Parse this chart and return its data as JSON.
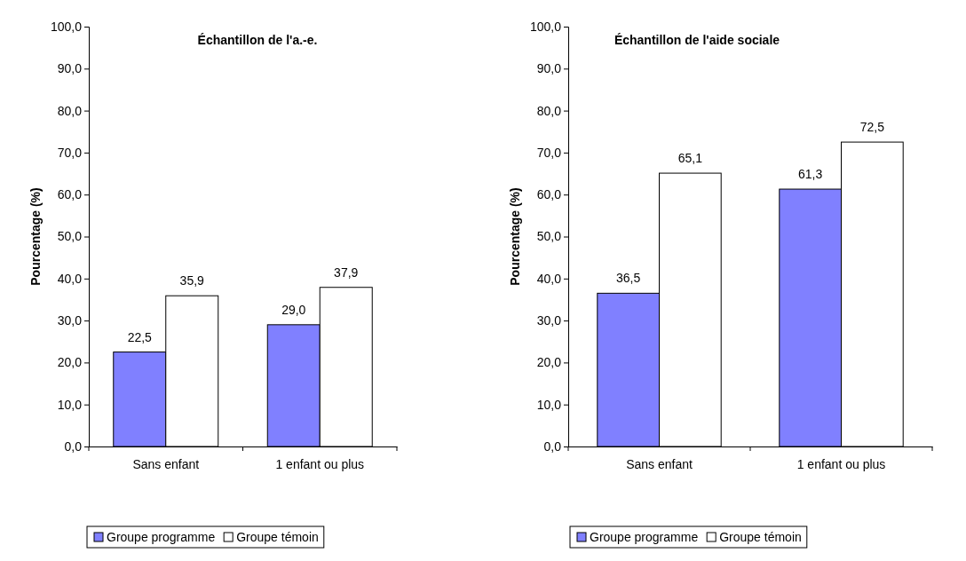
{
  "chart_data": [
    {
      "type": "bar",
      "title": "Échantillon de l'a.-e.",
      "ylabel": "Pourcentage (%)",
      "categories": [
        "Sans enfant",
        "1 enfant ou plus"
      ],
      "series": [
        {
          "name": "Groupe programme",
          "color": "#8080ff",
          "values": [
            22.5,
            29.0
          ],
          "value_labels": [
            "22,5",
            "29,0"
          ]
        },
        {
          "name": "Groupe témoin",
          "color": "#ffffff",
          "values": [
            35.9,
            37.9
          ],
          "value_labels": [
            "35,9",
            "37,9"
          ]
        }
      ],
      "ylim": [
        0,
        100
      ],
      "yticks": [
        {
          "value": 0,
          "label": "0,0"
        },
        {
          "value": 10,
          "label": "10,0"
        },
        {
          "value": 20,
          "label": "20,0"
        },
        {
          "value": 30,
          "label": "30,0"
        },
        {
          "value": 40,
          "label": "40,0"
        },
        {
          "value": 50,
          "label": "50,0"
        },
        {
          "value": 60,
          "label": "60,0"
        },
        {
          "value": 70,
          "label": "70,0"
        },
        {
          "value": 80,
          "label": "80,0"
        },
        {
          "value": 90,
          "label": "90,0"
        },
        {
          "value": 100,
          "label": "100,0"
        }
      ],
      "legend": "bottom"
    },
    {
      "type": "bar",
      "title": "Échantillon de l'aide sociale",
      "ylabel": "Pourcentage (%)",
      "categories": [
        "Sans enfant",
        "1 enfant ou plus"
      ],
      "series": [
        {
          "name": "Groupe programme",
          "color": "#8080ff",
          "values": [
            36.5,
            61.3
          ],
          "value_labels": [
            "36,5",
            "61,3"
          ]
        },
        {
          "name": "Groupe témoin",
          "color": "#ffffff",
          "values": [
            65.1,
            72.5
          ],
          "value_labels": [
            "65,1",
            "72,5"
          ]
        }
      ],
      "ylim": [
        0,
        100
      ],
      "yticks": [
        {
          "value": 0,
          "label": "0,0"
        },
        {
          "value": 10,
          "label": "10,0"
        },
        {
          "value": 20,
          "label": "20,0"
        },
        {
          "value": 30,
          "label": "30,0"
        },
        {
          "value": 40,
          "label": "40,0"
        },
        {
          "value": 50,
          "label": "50,0"
        },
        {
          "value": 60,
          "label": "60,0"
        },
        {
          "value": 70,
          "label": "70,0"
        },
        {
          "value": 80,
          "label": "80,0"
        },
        {
          "value": 90,
          "label": "90,0"
        },
        {
          "value": 100,
          "label": "100,0"
        }
      ],
      "legend": "bottom"
    }
  ]
}
